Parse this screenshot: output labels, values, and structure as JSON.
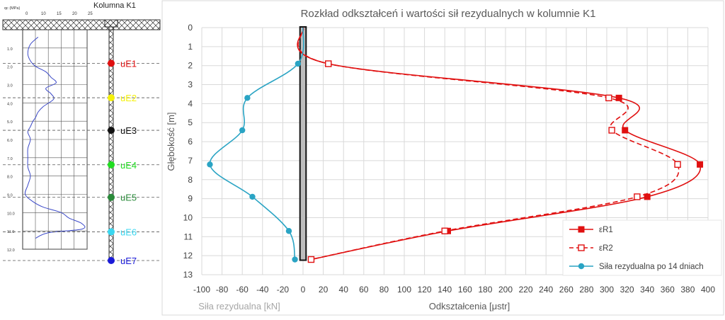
{
  "left_panel": {
    "title": "Kolumna K1",
    "cpt_top_axis_label": "qc (MPa)",
    "cpt_x_ticks": [
      "0",
      "10",
      "15",
      "20",
      "25"
    ],
    "cpt_depth_ticks": [
      "1.0",
      "2.0",
      "3.0",
      "4.0",
      "5.0",
      "6.0",
      "7.0",
      "8.0",
      "9.0",
      "10.0",
      "11.0",
      "12.0"
    ],
    "cpt_profile_depth": [
      0.4,
      0.8,
      1.3,
      1.7,
      2.0,
      2.3,
      2.6,
      2.9,
      3.2,
      3.5,
      3.8,
      4.2,
      4.5,
      4.8,
      5.0,
      5.3,
      5.6,
      6.0,
      6.5,
      7.0,
      7.5,
      8.0,
      8.5,
      9.0,
      9.4,
      9.7,
      10.0,
      10.3,
      10.6,
      10.9,
      11.1,
      11.4
    ],
    "cpt_profile_value": [
      6,
      3,
      2,
      3,
      5,
      9,
      11,
      13,
      9,
      11,
      12,
      8,
      6,
      5,
      4,
      3,
      2,
      3,
      2,
      2,
      2,
      3,
      2,
      1,
      4,
      8,
      15,
      18,
      23,
      23,
      10,
      5
    ],
    "sensors": [
      {
        "label": "uE1",
        "color": "#e01010",
        "depth": 1.9
      },
      {
        "label": "uE2",
        "color": "#f5f10a",
        "depth": 3.7
      },
      {
        "label": "uE3",
        "color": "#111111",
        "depth": 5.4
      },
      {
        "label": "uE4",
        "color": "#22dd22",
        "depth": 7.2
      },
      {
        "label": "uE5",
        "color": "#2a8a3a",
        "depth": 8.9
      },
      {
        "label": "uE6",
        "color": "#3ad7f0",
        "depth": 10.7
      },
      {
        "label": "uE7",
        "color": "#1a1ad8",
        "depth": 12.2
      }
    ]
  },
  "chart_data": {
    "type": "line",
    "title": "Rozkład odkształceń i wartości sił rezydualnych  w kolumnie K1",
    "ylabel": "Głębokość [m]",
    "xlabel_left": "Siła rezydualna [kN]",
    "xlabel": "Odkształcenia [μstr]",
    "xlim": [
      -100,
      400
    ],
    "ylim": [
      0,
      13
    ],
    "y_inverted": true,
    "x_ticks": [
      -100,
      -80,
      -60,
      -40,
      -20,
      0,
      20,
      40,
      60,
      80,
      100,
      120,
      140,
      160,
      180,
      200,
      220,
      240,
      260,
      280,
      300,
      320,
      340,
      360,
      380,
      400
    ],
    "y_ticks": [
      0,
      1,
      2,
      3,
      4,
      5,
      6,
      7,
      8,
      9,
      10,
      11,
      12,
      13
    ],
    "grid": true,
    "legend_position": "bottom-right",
    "pile_column": {
      "x_from": -3,
      "x_to": 3,
      "depth_from": 0,
      "depth_to": 12.2,
      "color": "#bdbdbd"
    },
    "series": [
      {
        "name": "εR1",
        "color": "#e01010",
        "style": "solid",
        "marker": "square-filled",
        "x": [
          0,
          25,
          312,
          318,
          392,
          340,
          143,
          8
        ],
        "y": [
          0,
          1.9,
          3.7,
          5.4,
          7.2,
          8.9,
          10.7,
          12.2
        ]
      },
      {
        "name": "εR2",
        "color": "#e01010",
        "style": "dashed",
        "marker": "square-open",
        "x": [
          0,
          25,
          302,
          305,
          370,
          330,
          140,
          8
        ],
        "y": [
          0,
          1.9,
          3.7,
          5.4,
          7.2,
          8.9,
          10.7,
          12.2
        ]
      },
      {
        "name": "Siła rezydualna po 14 dniach",
        "color": "#2aa4c4",
        "style": "solid",
        "marker": "circle-filled",
        "x": [
          0,
          -5,
          -55,
          -60,
          -92,
          -50,
          -14,
          -8
        ],
        "y": [
          0,
          1.9,
          3.7,
          5.4,
          7.2,
          8.9,
          10.7,
          12.2
        ]
      }
    ]
  }
}
